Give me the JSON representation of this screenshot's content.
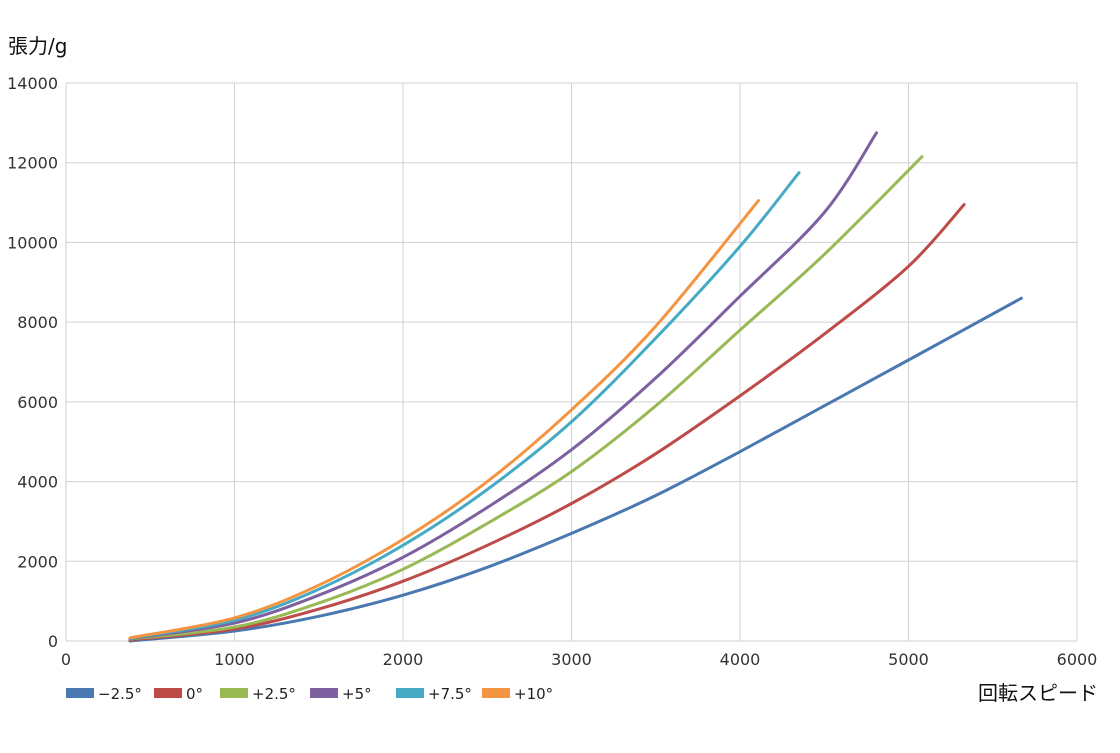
{
  "chart_data": {
    "type": "line",
    "title": "",
    "ylabel": "張力/g",
    "xlabel": "回転スピード",
    "xlim": [
      0,
      6000
    ],
    "ylim": [
      0,
      14000
    ],
    "xticks": [
      "0",
      "1000",
      "2000",
      "3000",
      "4000",
      "5000",
      "6000"
    ],
    "yticks": [
      "0",
      "2000",
      "4000",
      "6000",
      "8000",
      "10000",
      "12000",
      "14000"
    ],
    "grid": true,
    "legend_position": "bottom-left",
    "series": [
      {
        "name": "−2.5°",
        "color": "#4a78b0",
        "points": [
          [
            380,
            0
          ],
          [
            1000,
            250
          ],
          [
            1500,
            620
          ],
          [
            2000,
            1150
          ],
          [
            2500,
            1850
          ],
          [
            3000,
            2700
          ],
          [
            3500,
            3650
          ],
          [
            4000,
            4750
          ],
          [
            4500,
            5900
          ],
          [
            5000,
            7050
          ],
          [
            5670,
            8600
          ]
        ]
      },
      {
        "name": "0°",
        "color": "#be4b48",
        "points": [
          [
            380,
            30
          ],
          [
            1000,
            300
          ],
          [
            1500,
            800
          ],
          [
            2000,
            1500
          ],
          [
            2500,
            2400
          ],
          [
            3000,
            3450
          ],
          [
            3500,
            4700
          ],
          [
            4000,
            6150
          ],
          [
            4500,
            7700
          ],
          [
            5000,
            9400
          ],
          [
            5330,
            10950
          ]
        ]
      },
      {
        "name": "+2.5°",
        "color": "#98b954",
        "points": [
          [
            380,
            50
          ],
          [
            1000,
            350
          ],
          [
            1500,
            950
          ],
          [
            2000,
            1800
          ],
          [
            2500,
            2950
          ],
          [
            3000,
            4250
          ],
          [
            3500,
            5900
          ],
          [
            4000,
            7800
          ],
          [
            4500,
            9700
          ],
          [
            5080,
            12150
          ]
        ]
      },
      {
        "name": "+5°",
        "color": "#7d60a0",
        "points": [
          [
            380,
            60
          ],
          [
            1000,
            450
          ],
          [
            1500,
            1150
          ],
          [
            2000,
            2100
          ],
          [
            2500,
            3350
          ],
          [
            3000,
            4800
          ],
          [
            3500,
            6600
          ],
          [
            4000,
            8650
          ],
          [
            4500,
            10750
          ],
          [
            4810,
            12750
          ]
        ]
      },
      {
        "name": "+7.5°",
        "color": "#46aac5",
        "points": [
          [
            380,
            70
          ],
          [
            1000,
            520
          ],
          [
            1500,
            1300
          ],
          [
            2000,
            2400
          ],
          [
            2500,
            3800
          ],
          [
            3000,
            5500
          ],
          [
            3500,
            7600
          ],
          [
            4000,
            9900
          ],
          [
            4350,
            11750
          ]
        ]
      },
      {
        "name": "+10°",
        "color": "#f59440",
        "points": [
          [
            380,
            80
          ],
          [
            1000,
            580
          ],
          [
            1500,
            1400
          ],
          [
            2000,
            2550
          ],
          [
            2500,
            4000
          ],
          [
            3000,
            5800
          ],
          [
            3500,
            7900
          ],
          [
            4110,
            11050
          ]
        ]
      }
    ]
  }
}
